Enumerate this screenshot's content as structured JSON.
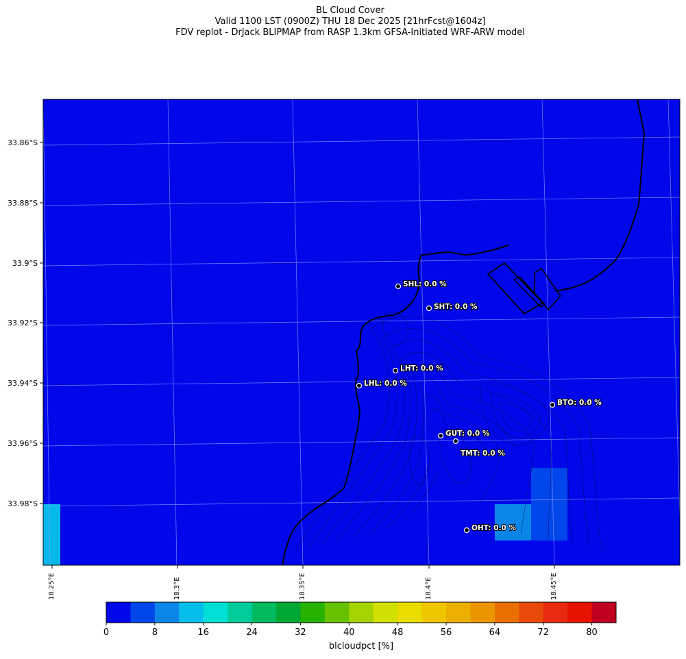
{
  "header": {
    "line1": "BL Cloud Cover",
    "line2": "Valid 1100 LST (0900Z) THU 18 Dec 2025 [21hrFcst@1604z]",
    "line3": "FDV replot - DrJack BLIPMAP from RASP 1.3km GFSA-Initiated WRF-ARW model"
  },
  "map": {
    "background_color": "#0008ea",
    "latitude_labels": [
      "33.86°S",
      "33.88°S",
      "33.9°S",
      "33.92°S",
      "33.94°S",
      "33.96°S",
      "33.98°S"
    ],
    "longitude_labels": [
      "18.25°E",
      "18.3°E",
      "18.35°E",
      "18.4°E",
      "18.45°E"
    ],
    "stations": [
      {
        "label": "SHL: 0.0 %"
      },
      {
        "label": "SHT: 0.0 %"
      },
      {
        "label": "LHT: 0.0 %"
      },
      {
        "label": "LHL: 0.0 %"
      },
      {
        "label": "BTO: 0.0 %"
      },
      {
        "label": "GUT: 0.0 %"
      },
      {
        "label": "TMT: 0.0 %"
      },
      {
        "label": "OHT: 0.0 %"
      }
    ],
    "cloud_cells": [
      {
        "value_pct": 4,
        "color": "#0046ea"
      },
      {
        "value_pct": 8,
        "color": "#0a86e8"
      },
      {
        "value_pct": 12,
        "color": "#05b8ea"
      }
    ]
  },
  "colorbar": {
    "label": "blcloudpct [%]",
    "ticks": [
      "0",
      "8",
      "16",
      "24",
      "32",
      "40",
      "48",
      "56",
      "64",
      "72",
      "80"
    ],
    "colors": [
      "#0008ea",
      "#0046ea",
      "#0a86e8",
      "#05bfea",
      "#00dfd6",
      "#00cc99",
      "#00bb5f",
      "#00a833",
      "#26b200",
      "#66c200",
      "#a5d300",
      "#d0e000",
      "#ebdc00",
      "#efc600",
      "#ebaf00",
      "#eb9500",
      "#eb6f00",
      "#e84a0a",
      "#e92a10",
      "#e81200",
      "#c00020"
    ]
  }
}
